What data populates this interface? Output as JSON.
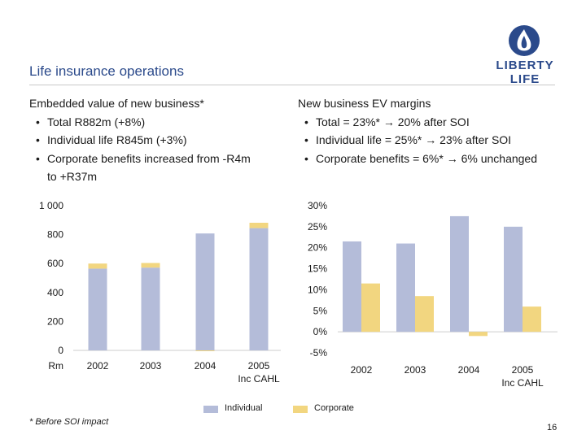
{
  "slide": {
    "title": "Life insurance operations",
    "page_number": "16",
    "footnote": "*  Before SOI impact"
  },
  "logo": {
    "line1": "LIBERTY",
    "line2": "LIFE",
    "icon": "flame-crest-icon"
  },
  "left_block": {
    "heading": "Embedded value of new business*",
    "bullets": [
      "Total R882m (+8%)",
      "Individual life R845m (+3%)",
      "Corporate benefits increased from -R4m"
    ],
    "continuation": "to +R37m"
  },
  "right_block": {
    "heading": "New business EV margins",
    "bullets": [
      "Total = 23%* → 20% after SOI",
      "Individual life = 25%* → 23% after SOI",
      "Corporate benefits = 6%* → 6% unchanged"
    ]
  },
  "legend": {
    "individual": "Individual",
    "corporate": "Corporate"
  },
  "colors": {
    "individual": "#b4bcd9",
    "corporate": "#f2d680",
    "title": "#2b4a8b"
  },
  "chart_data": [
    {
      "type": "bar",
      "stacked": true,
      "categories": [
        "2002",
        "2003",
        "2004",
        "2005"
      ],
      "category_sublabels": [
        "",
        "",
        "",
        "Inc CAHL"
      ],
      "series": [
        {
          "name": "Individual",
          "values": [
            565,
            572,
            808,
            845
          ]
        },
        {
          "name": "Corporate",
          "values": [
            35,
            32,
            -4,
            37
          ]
        }
      ],
      "yticks": [
        "1 000",
        "800",
        "600",
        "400",
        "200",
        "0"
      ],
      "unit_label": "Rm",
      "ylim": [
        0,
        1000
      ],
      "grid": false
    },
    {
      "type": "bar",
      "categories": [
        "2002",
        "2003",
        "2004",
        "2005"
      ],
      "category_sublabels": [
        "",
        "",
        "",
        "Inc CAHL"
      ],
      "series": [
        {
          "name": "Individual",
          "values": [
            21.5,
            21,
            27.5,
            25
          ]
        },
        {
          "name": "Corporate",
          "values": [
            11.5,
            8.5,
            -1,
            6
          ]
        }
      ],
      "yticks": [
        "30%",
        "25%",
        "20%",
        "15%",
        "10%",
        "5%",
        "0%",
        "-5%"
      ],
      "ylim": [
        -5,
        30
      ],
      "grid": false
    }
  ]
}
